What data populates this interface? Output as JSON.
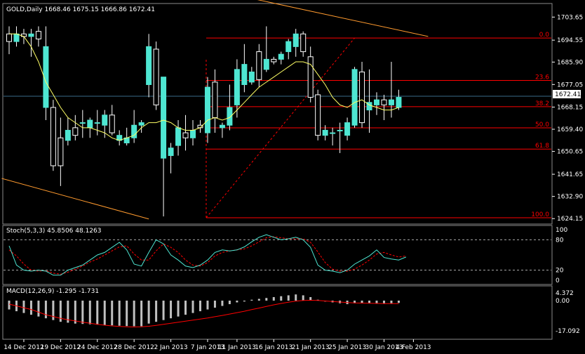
{
  "colors": {
    "background": "#000000",
    "frame": "#8a8a8a",
    "bull_candle": "#4ee6d2",
    "bear_candle": "#ffffff",
    "wick": "#ffffff",
    "ma_line": "#ffff66",
    "trend_line": "#ff9a2e",
    "fib_line": "#ff0000",
    "fib_label": "#ff0000",
    "price_marker_line": "#3a6b8a",
    "stoch_main": "#4ee6d2",
    "stoch_signal": "#ff0000",
    "macd_hist": "#c0c0c0",
    "macd_signal": "#ff0000"
  },
  "main_panel": {
    "header": "GOLD,Daily  1668.46 1675.15 1666.86 1672.41",
    "current_price_label": "1672.41",
    "price_ticks": [
      "1703.65",
      "1694.55",
      "1685.90",
      "1677.05",
      "1668.15",
      "1659.40",
      "1650.65",
      "1641.65",
      "1632.90",
      "1624.15"
    ],
    "fib_labels": [
      "0.0",
      "23.6",
      "38.2",
      "50.0",
      "61.8",
      "100.0"
    ]
  },
  "stoch_panel": {
    "header": "Stoch(5,3,3) 45.8506 48.1263",
    "ticks": [
      "100",
      "80",
      "20",
      "0"
    ]
  },
  "macd_panel": {
    "header": "MACD(12,26,9) -1.295 -1.731",
    "ticks": [
      "4.372",
      "0.00",
      "-17.092"
    ]
  },
  "date_labels": [
    "14 Dec 2012",
    "19 Dec 2012",
    "24 Dec 2012",
    "28 Dec 2012",
    "2 Jan 2013",
    "7 Jan 2013",
    "11 Jan 2013",
    "16 Jan 2013",
    "21 Jan 2013",
    "25 Jan 2013",
    "30 Jan 2013",
    "4 Feb 2013"
  ],
  "chart_data": {
    "type": "candlestick",
    "symbol": "GOLD",
    "timeframe": "Daily",
    "ohlc_last": {
      "open": 1668.46,
      "high": 1675.15,
      "low": 1666.86,
      "close": 1672.41
    },
    "ylim": [
      1622.0,
      1709.0
    ],
    "candles": [
      {
        "o": 1697,
        "h": 1700,
        "l": 1689,
        "c": 1694
      },
      {
        "o": 1694,
        "h": 1700,
        "l": 1692,
        "c": 1697
      },
      {
        "o": 1697,
        "h": 1699,
        "l": 1693,
        "c": 1696
      },
      {
        "o": 1696,
        "h": 1699,
        "l": 1688,
        "c": 1697
      },
      {
        "o": 1698,
        "h": 1700,
        "l": 1692,
        "c": 1695
      },
      {
        "o": 1668,
        "h": 1700,
        "l": 1663,
        "c": 1692
      },
      {
        "o": 1668,
        "h": 1671,
        "l": 1643,
        "c": 1645
      },
      {
        "o": 1656,
        "h": 1664,
        "l": 1637,
        "c": 1645
      },
      {
        "o": 1655,
        "h": 1664,
        "l": 1653,
        "c": 1659
      },
      {
        "o": 1660,
        "h": 1665,
        "l": 1655,
        "c": 1657
      },
      {
        "o": 1662,
        "h": 1667,
        "l": 1656,
        "c": 1662
      },
      {
        "o": 1660,
        "h": 1664,
        "l": 1656,
        "c": 1663
      },
      {
        "o": 1662,
        "h": 1667,
        "l": 1657,
        "c": 1662
      },
      {
        "o": 1661,
        "h": 1667,
        "l": 1656,
        "c": 1665
      },
      {
        "o": 1665,
        "h": 1669,
        "l": 1657,
        "c": 1658
      },
      {
        "o": 1655,
        "h": 1659,
        "l": 1653,
        "c": 1657
      },
      {
        "o": 1654,
        "h": 1660,
        "l": 1653,
        "c": 1656
      },
      {
        "o": 1656,
        "h": 1667,
        "l": 1654,
        "c": 1661
      },
      {
        "o": 1661,
        "h": 1663,
        "l": 1658,
        "c": 1662
      },
      {
        "o": 1677,
        "h": 1697,
        "l": 1672,
        "c": 1692
      },
      {
        "o": 1691,
        "h": 1694,
        "l": 1667,
        "c": 1669
      },
      {
        "o": 1648,
        "h": 1680,
        "l": 1625,
        "c": 1680
      },
      {
        "o": 1649,
        "h": 1654,
        "l": 1642,
        "c": 1652
      },
      {
        "o": 1653,
        "h": 1663,
        "l": 1649,
        "c": 1660
      },
      {
        "o": 1658,
        "h": 1665,
        "l": 1651,
        "c": 1656
      },
      {
        "o": 1656,
        "h": 1663,
        "l": 1653,
        "c": 1659
      },
      {
        "o": 1661,
        "h": 1663,
        "l": 1658,
        "c": 1660
      },
      {
        "o": 1658,
        "h": 1680,
        "l": 1654,
        "c": 1676
      },
      {
        "o": 1678,
        "h": 1683,
        "l": 1658,
        "c": 1664
      },
      {
        "o": 1660,
        "h": 1662,
        "l": 1656,
        "c": 1661
      },
      {
        "o": 1661,
        "h": 1677,
        "l": 1659,
        "c": 1668
      },
      {
        "o": 1669,
        "h": 1687,
        "l": 1664,
        "c": 1683
      },
      {
        "o": 1677,
        "h": 1693,
        "l": 1674,
        "c": 1685
      },
      {
        "o": 1678,
        "h": 1684,
        "l": 1677,
        "c": 1682
      },
      {
        "o": 1690,
        "h": 1693,
        "l": 1676,
        "c": 1679
      },
      {
        "o": 1683,
        "h": 1700,
        "l": 1682,
        "c": 1687
      },
      {
        "o": 1687,
        "h": 1688,
        "l": 1685,
        "c": 1686
      },
      {
        "o": 1687,
        "h": 1690,
        "l": 1685,
        "c": 1689
      },
      {
        "o": 1690,
        "h": 1695,
        "l": 1687,
        "c": 1694
      },
      {
        "o": 1692,
        "h": 1699,
        "l": 1688,
        "c": 1697
      },
      {
        "o": 1697,
        "h": 1698,
        "l": 1688,
        "c": 1690
      },
      {
        "o": 1688,
        "h": 1692,
        "l": 1670,
        "c": 1672
      },
      {
        "o": 1673,
        "h": 1675,
        "l": 1655,
        "c": 1657
      },
      {
        "o": 1657,
        "h": 1661,
        "l": 1655,
        "c": 1659
      },
      {
        "o": 1658,
        "h": 1660,
        "l": 1653,
        "c": 1658
      },
      {
        "o": 1659,
        "h": 1662,
        "l": 1650,
        "c": 1659
      },
      {
        "o": 1657,
        "h": 1664,
        "l": 1655,
        "c": 1662
      },
      {
        "o": 1661,
        "h": 1684,
        "l": 1660,
        "c": 1683
      },
      {
        "o": 1682,
        "h": 1686,
        "l": 1660,
        "c": 1662
      },
      {
        "o": 1667,
        "h": 1683,
        "l": 1658,
        "c": 1670
      },
      {
        "o": 1669,
        "h": 1674,
        "l": 1665,
        "c": 1671
      },
      {
        "o": 1671,
        "h": 1673,
        "l": 1663,
        "c": 1669
      },
      {
        "o": 1669,
        "h": 1686,
        "l": 1664,
        "c": 1671
      },
      {
        "o": 1668,
        "h": 1675,
        "l": 1667,
        "c": 1672
      }
    ],
    "ma": [
      1697,
      1697,
      1696,
      1692,
      1686,
      1678,
      1673,
      1668,
      1664,
      1662,
      1660,
      1660,
      1659,
      1658,
      1656,
      1655,
      1656,
      1657,
      1660,
      1662,
      1662,
      1663,
      1662,
      1660,
      1659,
      1659,
      1660,
      1663,
      1664,
      1663,
      1664,
      1667,
      1670,
      1673,
      1676,
      1678,
      1680,
      1682,
      1684,
      1686,
      1686,
      1685,
      1681,
      1677,
      1672,
      1669,
      1668,
      1670,
      1671,
      1669,
      1668,
      1667,
      1667,
      1668
    ],
    "trend_lines": [
      {
        "name": "upper",
        "from": {
          "i": 33,
          "p": 1711
        },
        "to": {
          "i": 57,
          "p": 1696
        }
      },
      {
        "name": "lower",
        "from": {
          "i": -1,
          "p": 1640
        },
        "to": {
          "i": 19,
          "p": 1624
        }
      }
    ],
    "fibonacci": {
      "high": 1695.4,
      "low": 1624.5,
      "levels": [
        0.0,
        23.6,
        38.2,
        50.0,
        61.8,
        100.0
      ]
    },
    "stochastic": {
      "params": "5,3,3",
      "main": 45.8506,
      "signal": 48.1263,
      "ylim": [
        0,
        100
      ],
      "levels": [
        20,
        80
      ],
      "k": [
        68,
        30,
        20,
        18,
        20,
        18,
        10,
        10,
        20,
        25,
        30,
        40,
        50,
        55,
        65,
        75,
        60,
        32,
        28,
        55,
        80,
        72,
        50,
        40,
        28,
        25,
        30,
        40,
        55,
        60,
        58,
        60,
        66,
        76,
        85,
        90,
        85,
        80,
        82,
        85,
        80,
        65,
        30,
        20,
        18,
        15,
        20,
        32,
        40,
        48,
        60,
        45,
        42,
        40,
        46
      ],
      "d": [
        60,
        48,
        32,
        20,
        18,
        19,
        14,
        12,
        16,
        22,
        28,
        36,
        42,
        50,
        58,
        66,
        68,
        52,
        40,
        40,
        58,
        72,
        65,
        55,
        40,
        30,
        28,
        35,
        48,
        55,
        58,
        60,
        62,
        68,
        76,
        84,
        86,
        84,
        82,
        82,
        82,
        75,
        56,
        35,
        22,
        18,
        18,
        22,
        30,
        40,
        52,
        55,
        50,
        46,
        48
      ]
    },
    "macd": {
      "params": "12,26,9",
      "main": -1.295,
      "signal": -1.731,
      "ylim": [
        -17.092,
        4.372
      ],
      "hist": [
        -5,
        -6,
        -7,
        -8,
        -9,
        -10,
        -11,
        -12,
        -12.5,
        -13,
        -13.2,
        -13.4,
        -13.6,
        -13.8,
        -14,
        -14.2,
        -14.4,
        -14.5,
        -14.5,
        -13,
        -12,
        -11,
        -10,
        -9,
        -8,
        -7,
        -6,
        -5,
        -4,
        -3,
        -2,
        -1,
        -0.5,
        0.5,
        1,
        1.5,
        2,
        2.5,
        3,
        3.5,
        3,
        2,
        0.5,
        -0.5,
        -1,
        -1.5,
        -2,
        -1.5,
        -1.5,
        -1.5,
        -1.5,
        -1.5,
        -1.5,
        -1.3
      ],
      "signal_line": [
        -2,
        -3,
        -4,
        -5,
        -6.5,
        -8,
        -9,
        -10,
        -10.8,
        -11.5,
        -12.2,
        -12.8,
        -13.4,
        -13.9,
        -14.3,
        -14.6,
        -14.8,
        -14.9,
        -14.8,
        -14.5,
        -14,
        -13.4,
        -12.8,
        -12.2,
        -11.6,
        -11,
        -10.4,
        -9.8,
        -9.1,
        -8.4,
        -7.6,
        -6.8,
        -6,
        -5.1,
        -4.2,
        -3.3,
        -2.4,
        -1.6,
        -0.9,
        -0.3,
        0.1,
        0.2,
        0.1,
        -0.2,
        -0.5,
        -0.8,
        -1.1,
        -1.3,
        -1.4,
        -1.5,
        -1.6,
        -1.7,
        -1.7,
        -1.7
      ]
    }
  }
}
